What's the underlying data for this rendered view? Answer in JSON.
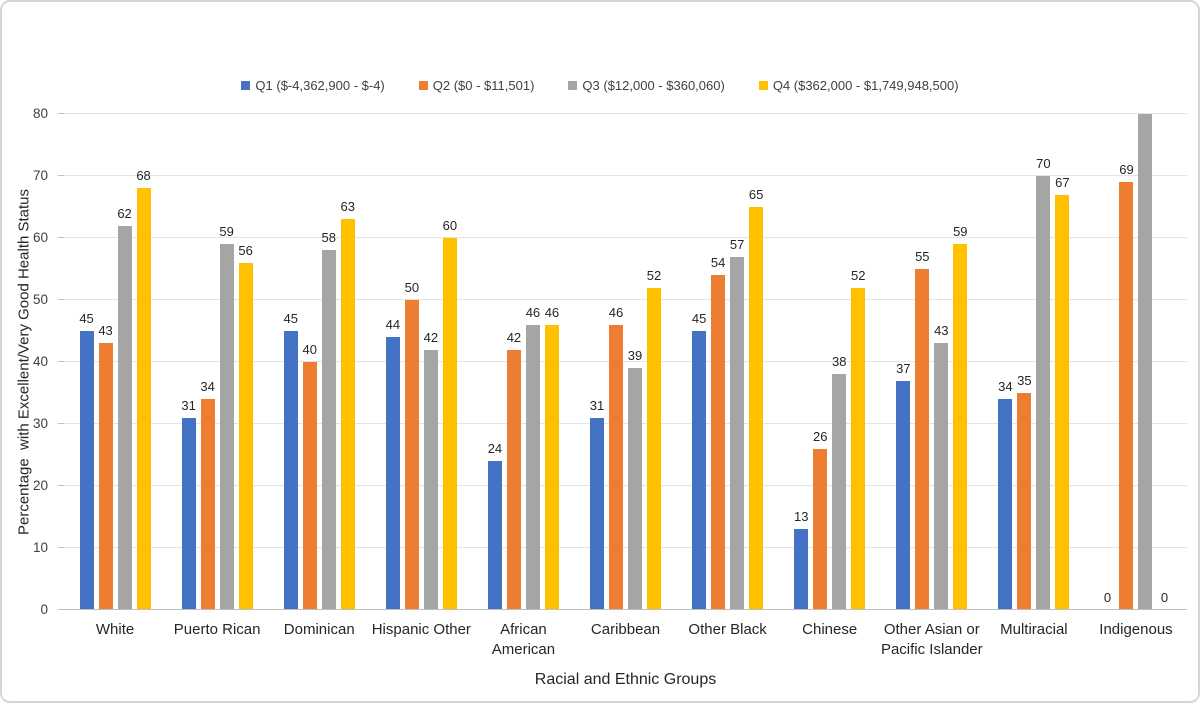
{
  "chart_data": {
    "type": "bar",
    "title": "",
    "xlabel": "Racial and Ethnic Groups",
    "ylabel": "Percentage  with Excellent/Very Good Health Status",
    "ylim": [
      0,
      80
    ],
    "yticks": [
      0,
      10,
      20,
      30,
      40,
      50,
      60,
      70,
      80
    ],
    "grid": true,
    "legend_position": "top-center",
    "categories": [
      "White",
      "Puerto Rican",
      "Dominican",
      "Hispanic Other",
      "African American",
      "Caribbean",
      "Other Black",
      "Chinese",
      "Other Asian or Pacific Islander",
      "Multiracial",
      "Indigenous"
    ],
    "category_display": [
      "White",
      "Puerto Rican",
      "Dominican",
      "Hispanic Other",
      "African\nAmerican",
      "Caribbean",
      "Other Black",
      "Chinese",
      "Other Asian or\nPacific Islander",
      "Multiracial",
      "Indigenous"
    ],
    "series": [
      {
        "name": "Q1 ($-4,362,900 - $-4)",
        "color": "#4472C4",
        "values": [
          45,
          31,
          45,
          44,
          24,
          31,
          45,
          13,
          37,
          34,
          0
        ],
        "labels": [
          "45",
          "31",
          "45",
          "44",
          "24",
          "31",
          "45",
          "13",
          "37",
          "34",
          "0"
        ]
      },
      {
        "name": "Q2 ($0 - $11,501)",
        "color": "#ED7D31",
        "values": [
          43,
          34,
          40,
          50,
          42,
          46,
          54,
          26,
          55,
          35,
          69
        ],
        "labels": [
          "43",
          "34",
          "40",
          "50",
          "42",
          "46",
          "54",
          "26",
          "55",
          "35",
          "69"
        ]
      },
      {
        "name": "Q3 ($12,000 - $360,060)",
        "color": "#A5A5A5",
        "values": [
          62,
          59,
          58,
          42,
          46,
          39,
          57,
          38,
          43,
          70,
          80
        ],
        "labels": [
          "62",
          "59",
          "58",
          "42",
          "46",
          "39",
          "57",
          "38",
          "43",
          "70",
          null
        ]
      },
      {
        "name": "Q4 ($362,000 - $1,749,948,500)",
        "color": "#FFC000",
        "values": [
          68,
          56,
          63,
          60,
          46,
          52,
          65,
          52,
          59,
          67,
          0
        ],
        "labels": [
          "68",
          "56",
          "63",
          "60",
          "46",
          "52",
          "65",
          "52",
          "59",
          "67",
          "0"
        ]
      }
    ]
  },
  "style_colors": {
    "gridline": "#e4e4e4",
    "axis_line": "#bfbfbf",
    "label_text": "#262626",
    "tick_text": "#404040"
  }
}
